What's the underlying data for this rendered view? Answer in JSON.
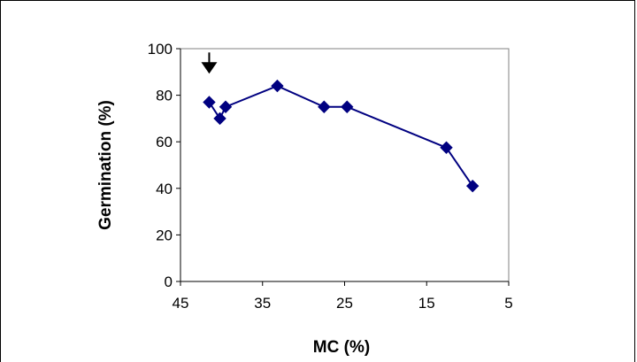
{
  "chart_data": {
    "type": "scatter",
    "title": "",
    "xlabel": "MC (%)",
    "ylabel": "Germination (%)",
    "xlim": [
      45,
      5
    ],
    "x_reversed": true,
    "ylim": [
      0,
      100
    ],
    "xticks": [
      45,
      35,
      25,
      15,
      5
    ],
    "yticks": [
      0,
      20,
      40,
      60,
      80,
      100
    ],
    "grid": false,
    "legend": "none",
    "series": [
      {
        "color": "#000080",
        "marker": "diamond",
        "connected": true,
        "x": [
          41.5,
          40.2,
          39.5,
          33.2,
          27.5,
          24.7,
          12.6,
          9.4
        ],
        "y": [
          77,
          70,
          75,
          84,
          75,
          75,
          57.5,
          41
        ]
      }
    ],
    "annotations": [
      {
        "type": "arrow-down",
        "x": 41.5,
        "y": 90
      }
    ]
  }
}
